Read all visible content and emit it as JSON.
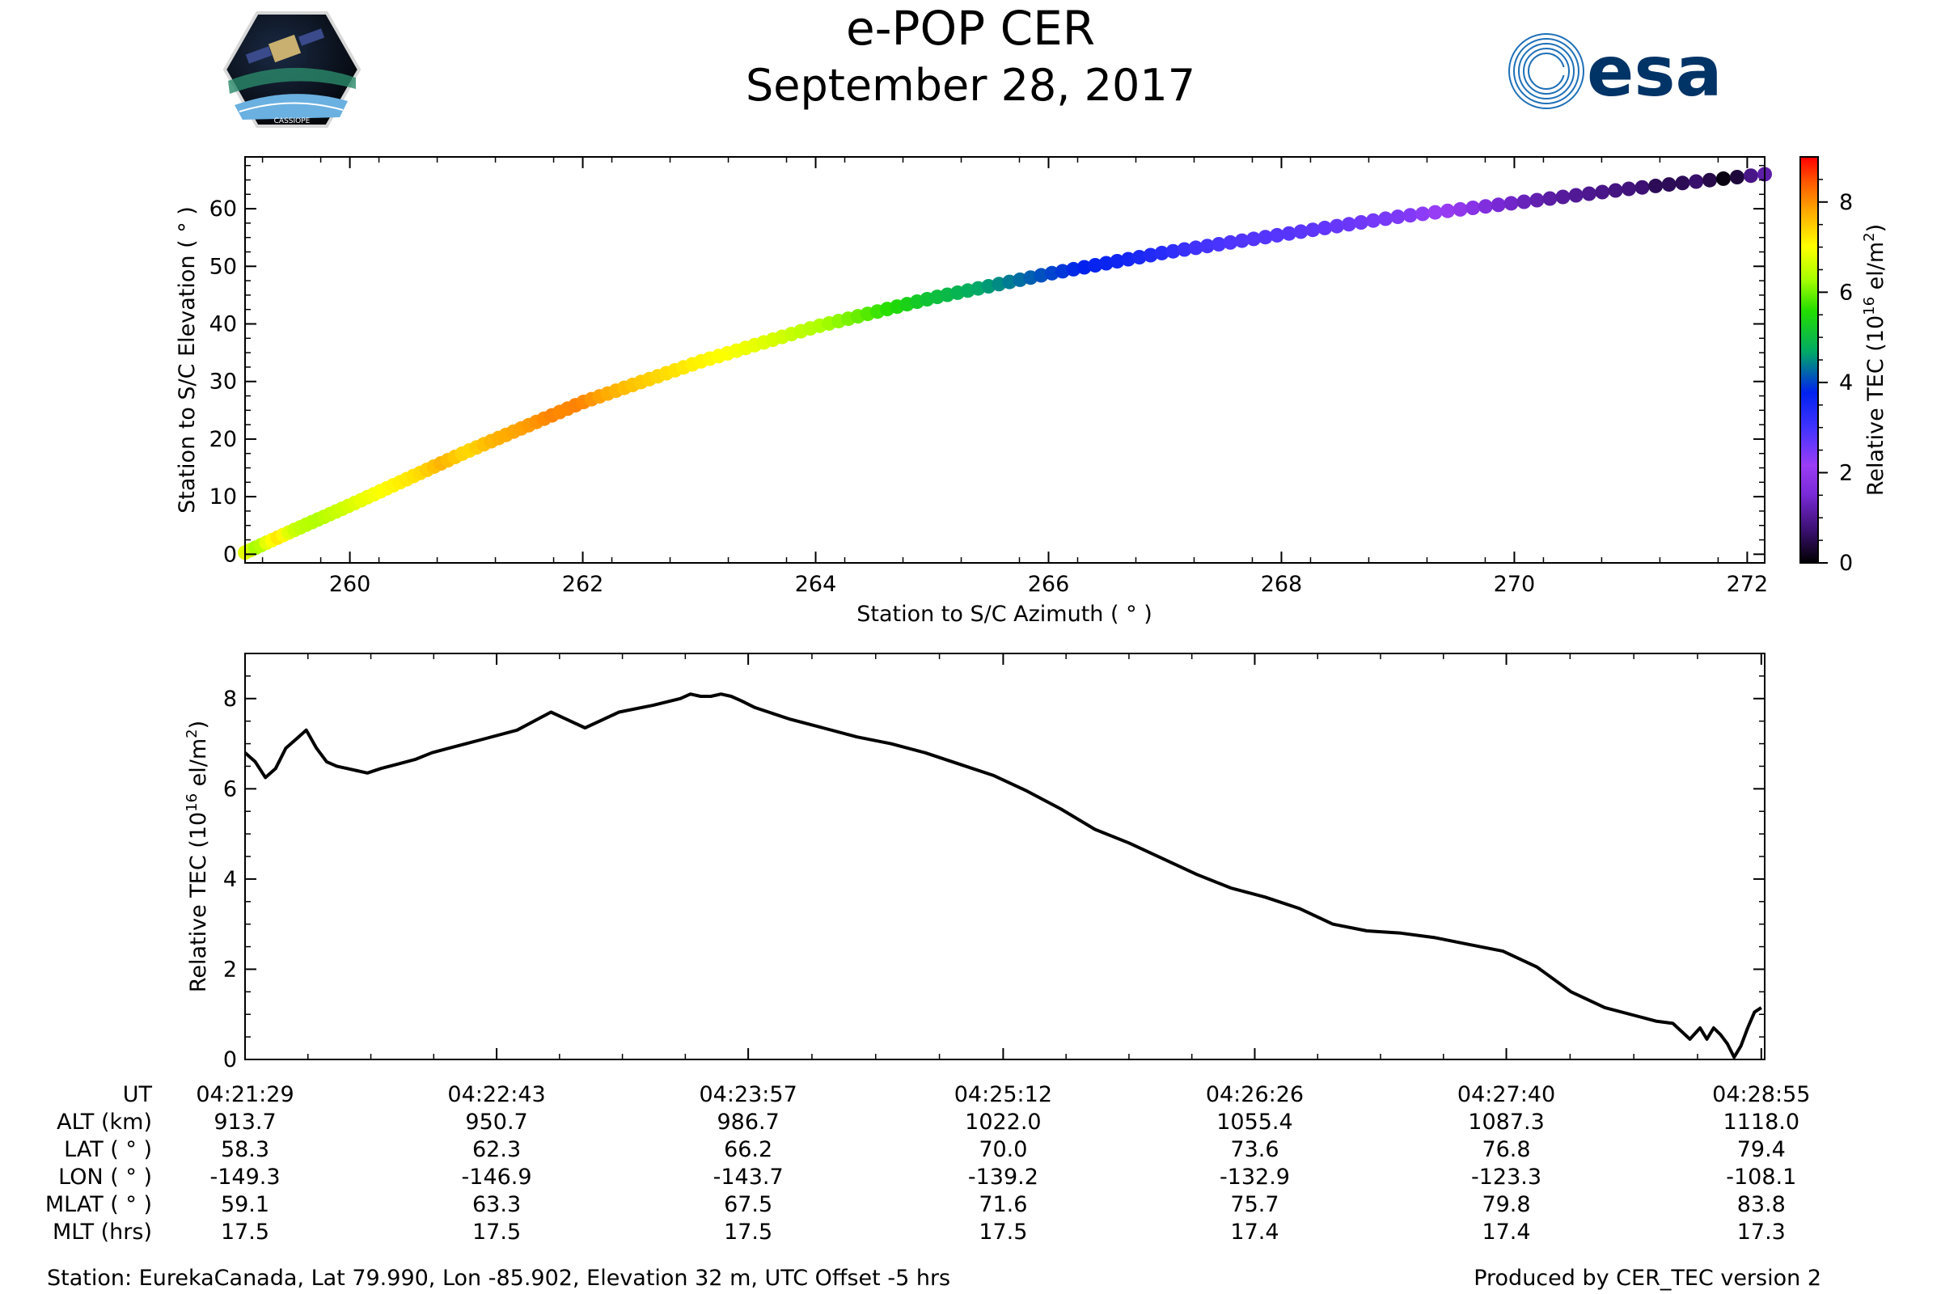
{
  "header": {
    "title": "e-POP CER",
    "date": "September 28, 2017",
    "logo_left_text": "CASSIOPE",
    "logo_right_text": "esa"
  },
  "colors": {
    "line": "#000000",
    "colormap_stops": [
      "#000000",
      "#5a1aa0",
      "#9a3df5",
      "#4433ff",
      "#0022ee",
      "#00aa66",
      "#22dd00",
      "#aaff00",
      "#ffff00",
      "#ffa500",
      "#ff5500",
      "#ff0000"
    ],
    "esa_blue": "#003366"
  },
  "chart_data": [
    {
      "type": "scatter",
      "title": "",
      "xlabel": "Station to S/C Azimuth ( ° )",
      "ylabel": "Station to S/C Elevation ( ° )",
      "xlim": [
        259.1,
        272.15
      ],
      "ylim": [
        -1.5,
        69
      ],
      "xticks": [
        260,
        262,
        264,
        266,
        268,
        270,
        272
      ],
      "yticks": [
        0,
        10,
        20,
        30,
        40,
        50,
        60
      ],
      "xtick_labels": [
        "260",
        "262",
        "264",
        "266",
        "268",
        "270",
        "272"
      ],
      "ytick_labels": [
        "0",
        "10",
        "20",
        "30",
        "40",
        "50",
        "60"
      ],
      "track_azimuth": [
        259.1,
        259.5,
        260.0,
        261.0,
        262.0,
        263.0,
        264.0,
        265.0,
        266.0,
        267.0,
        268.0,
        269.0,
        270.0,
        271.0,
        272.15
      ],
      "track_elevation": [
        0.3,
        4.0,
        8.5,
        17.8,
        26.4,
        33.4,
        39.5,
        44.5,
        48.7,
        52.4,
        55.5,
        58.6,
        61.0,
        63.5,
        66.0
      ],
      "color_by": "Relative TEC",
      "colorbar": {
        "label": "Relative TEC (10",
        "label_exp": "16",
        "label_tail": " el/m",
        "label_sq": "2",
        "label_end": ")",
        "range": [
          0,
          9
        ],
        "ticks": [
          0,
          2,
          4,
          6,
          8
        ],
        "tick_labels": [
          "0",
          "2",
          "4",
          "6",
          "8"
        ]
      }
    },
    {
      "type": "line",
      "title": "",
      "xlabel": "",
      "ylabel": "Relative TEC (10",
      "ylabel_exp": "16",
      "ylabel_tail": " el/m",
      "ylabel_sq": "2",
      "ylabel_end": ")",
      "xlim": [
        0,
        447
      ],
      "ylim": [
        0,
        9
      ],
      "xticks": [
        0,
        74,
        148,
        223,
        297,
        371,
        446
      ],
      "yticks": [
        0,
        2,
        4,
        6,
        8
      ],
      "ytick_labels": [
        "0",
        "2",
        "4",
        "6",
        "8"
      ],
      "x_unit": "seconds after 04:21:29 UT",
      "x": [
        0,
        3,
        6,
        9,
        12,
        15,
        18,
        21,
        24,
        27,
        30,
        33,
        36,
        40,
        45,
        50,
        55,
        60,
        65,
        70,
        80,
        90,
        100,
        110,
        120,
        128,
        131,
        134,
        137,
        140,
        143,
        146,
        150,
        160,
        170,
        180,
        190,
        200,
        210,
        220,
        230,
        240,
        250,
        260,
        270,
        280,
        290,
        300,
        310,
        320,
        330,
        340,
        350,
        360,
        370,
        380,
        390,
        400,
        410,
        415,
        420,
        425,
        428,
        430,
        432,
        434,
        436,
        438,
        440,
        442,
        444,
        446
      ],
      "y": [
        6.8,
        6.6,
        6.25,
        6.45,
        6.9,
        7.1,
        7.3,
        6.9,
        6.6,
        6.5,
        6.45,
        6.4,
        6.35,
        6.45,
        6.55,
        6.65,
        6.8,
        6.9,
        7.0,
        7.1,
        7.3,
        7.7,
        7.35,
        7.7,
        7.85,
        8.0,
        8.1,
        8.05,
        8.05,
        8.1,
        8.05,
        7.95,
        7.8,
        7.55,
        7.35,
        7.15,
        7.0,
        6.8,
        6.55,
        6.3,
        5.95,
        5.55,
        5.1,
        4.8,
        4.45,
        4.1,
        3.8,
        3.6,
        3.35,
        3.0,
        2.85,
        2.8,
        2.7,
        2.55,
        2.4,
        2.05,
        1.5,
        1.15,
        0.95,
        0.85,
        0.8,
        0.45,
        0.7,
        0.45,
        0.7,
        0.55,
        0.35,
        0.05,
        0.3,
        0.7,
        1.05,
        1.15
      ]
    }
  ],
  "ephemeris": {
    "row_labels": [
      "UT",
      "ALT (km)",
      "LAT ( ° )",
      "LON ( ° )",
      "MLAT ( ° )",
      "MLT (hrs)"
    ],
    "columns": [
      {
        "ut": "04:21:29",
        "alt": "913.7",
        "lat": "58.3",
        "lon": "-149.3",
        "mlat": "59.1",
        "mlt": "17.5"
      },
      {
        "ut": "04:22:43",
        "alt": "950.7",
        "lat": "62.3",
        "lon": "-146.9",
        "mlat": "63.3",
        "mlt": "17.5"
      },
      {
        "ut": "04:23:57",
        "alt": "986.7",
        "lat": "66.2",
        "lon": "-143.7",
        "mlat": "67.5",
        "mlt": "17.5"
      },
      {
        "ut": "04:25:12",
        "alt": "1022.0",
        "lat": "70.0",
        "lon": "-139.2",
        "mlat": "71.6",
        "mlt": "17.5"
      },
      {
        "ut": "04:26:26",
        "alt": "1055.4",
        "lat": "73.6",
        "lon": "-132.9",
        "mlat": "75.7",
        "mlt": "17.4"
      },
      {
        "ut": "04:27:40",
        "alt": "1087.3",
        "lat": "76.8",
        "lon": "-123.3",
        "mlat": "79.8",
        "mlt": "17.4"
      },
      {
        "ut": "04:28:55",
        "alt": "1118.0",
        "lat": "79.4",
        "lon": "-108.1",
        "mlat": "83.8",
        "mlt": "17.3"
      }
    ]
  },
  "footer": {
    "station": "Station: EurekaCanada, Lat 79.990, Lon -85.902, Elevation 32 m, UTC Offset -5 hrs",
    "produced_by": "Produced by CER_TEC version 2"
  }
}
